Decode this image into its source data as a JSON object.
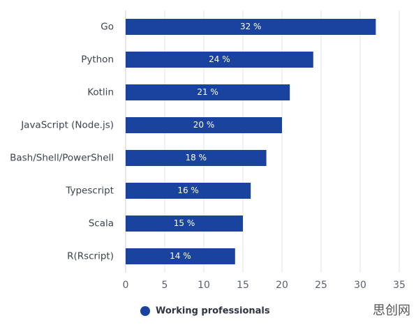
{
  "chart_data": {
    "type": "hbar",
    "categories": [
      "Go",
      "Python",
      "Kotlin",
      "JavaScript (Node.js)",
      "Bash/Shell/PowerShell",
      "Typescript",
      "Scala",
      "R(Rscript)"
    ],
    "series": [
      {
        "name": "Working professionals",
        "color": "#1a43a0",
        "values": [
          32,
          24,
          21,
          20,
          18,
          16,
          15,
          14
        ],
        "value_labels": [
          "32 %",
          "24 %",
          "21 %",
          "20 %",
          "18 %",
          "16 %",
          "15 %",
          "14 %"
        ]
      }
    ],
    "xlim": [
      0,
      35
    ],
    "xticks": [
      0,
      5,
      10,
      15,
      20,
      25,
      30,
      35
    ],
    "grid": true
  },
  "watermark": "思创网"
}
